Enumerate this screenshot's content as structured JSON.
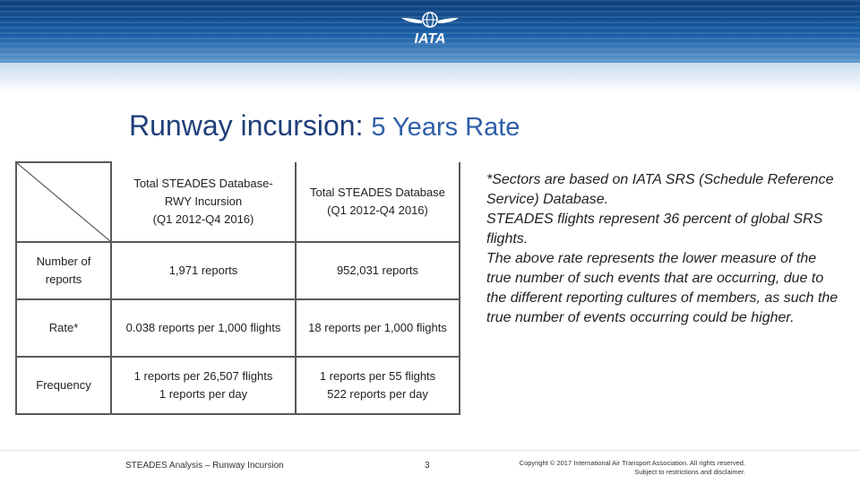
{
  "header": {
    "logo_text": "IATA",
    "banner_color": "#1a5fa6"
  },
  "slide": {
    "title_main": "Runway incursion: ",
    "title_accent": "5 Years Rate"
  },
  "table": {
    "col_headers": [
      [
        "Total STEADES Database-",
        "RWY Incursion",
        "(Q1 2012-Q4 2016)"
      ],
      [
        "Total STEADES Database",
        "(Q1 2012-Q4 2016)"
      ]
    ],
    "rows": [
      {
        "label": [
          "Number of",
          "reports"
        ],
        "cells": [
          [
            "1,971 reports"
          ],
          [
            "952,031 reports"
          ]
        ]
      },
      {
        "label": [
          "Rate*"
        ],
        "cells": [
          [
            "0.038 reports per 1,000 flights"
          ],
          [
            "18 reports per 1,000 flights"
          ]
        ]
      },
      {
        "label": [
          "Frequency"
        ],
        "cells": [
          [
            "1 reports per 26,507 flights",
            "1 reports per day"
          ],
          [
            "1 reports per 55 flights",
            "522 reports per day"
          ]
        ]
      }
    ]
  },
  "notes": [
    "*Sectors are based on IATA SRS (Schedule Reference Service) Database.",
    "STEADES flights represent 36 percent of global SRS flights.",
    "The above rate represents the lower measure of the true number of such events that are occurring, due to the different reporting cultures of members, as such the true number of events occurring could be higher."
  ],
  "footer": {
    "doc_title": "STEADES Analysis – Runway Incursion",
    "page_number": "3",
    "copyright": "Copyright © 2017 International Air Transport Association. All rights reserved.",
    "disclaimer": "Subject to restrictions and disclaimer."
  }
}
